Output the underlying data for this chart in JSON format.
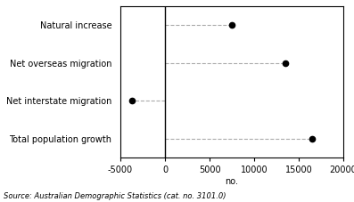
{
  "categories": [
    "Natural increase",
    "Net overseas migration",
    "Net interstate migration",
    "Total population growth"
  ],
  "values": [
    7500,
    13500,
    -3700,
    16500
  ],
  "xlim": [
    -5000,
    20000
  ],
  "xticks": [
    -5000,
    0,
    5000,
    10000,
    15000,
    20000
  ],
  "xtick_labels": [
    "-5000",
    "0",
    "5000",
    "10000",
    "15000",
    "20000"
  ],
  "xlabel": "no.",
  "source_text": "Source: Australian Demographic Statistics (cat. no. 3101.0)",
  "dot_color": "#000000",
  "dot_size": 4.5,
  "line_color": "#aaaaaa",
  "line_style": "--",
  "vline_color": "#000000",
  "background_color": "#ffffff",
  "label_fontsize": 7,
  "tick_fontsize": 7,
  "source_fontsize": 6
}
